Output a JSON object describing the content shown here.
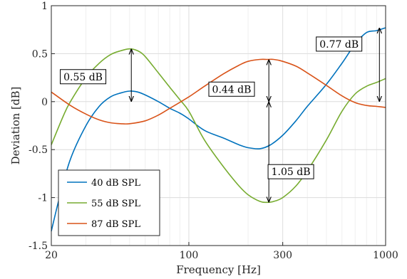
{
  "chart_data": {
    "type": "line",
    "xlabel": "Frequency [Hz]",
    "ylabel": "Deviation [dB]",
    "x_scale": "log",
    "xlim": [
      20,
      1000
    ],
    "ylim": [
      -1.5,
      1
    ],
    "x_ticks": [
      20,
      100,
      300,
      1000
    ],
    "x_tick_labels": [
      "20",
      "100",
      "300",
      "1000"
    ],
    "y_ticks": [
      -1.5,
      -1,
      -0.5,
      0,
      0.5,
      1
    ],
    "y_tick_labels": [
      "-1.5",
      "-1",
      "-0.5",
      "0",
      "0.5",
      "1"
    ],
    "grid": true,
    "legend_position": "bottom-left",
    "series": [
      {
        "name": "40 dB SPL",
        "color": "#0072BD",
        "x": [
          20,
          22,
          25,
          30,
          35,
          40,
          45,
          50,
          55,
          60,
          70,
          80,
          90,
          100,
          120,
          150,
          180,
          200,
          230,
          260,
          300,
          350,
          400,
          500,
          600,
          700,
          800,
          900,
          1000
        ],
        "y": [
          -1.35,
          -1.0,
          -0.6,
          -0.25,
          -0.05,
          0.05,
          0.09,
          0.11,
          0.1,
          0.07,
          0.0,
          -0.07,
          -0.12,
          -0.18,
          -0.3,
          -0.38,
          -0.45,
          -0.48,
          -0.49,
          -0.45,
          -0.35,
          -0.2,
          -0.05,
          0.18,
          0.4,
          0.6,
          0.72,
          0.74,
          0.77
        ]
      },
      {
        "name": "55 dB SPL",
        "color": "#77AC30",
        "x": [
          20,
          23,
          25,
          30,
          35,
          40,
          45,
          50,
          55,
          60,
          70,
          80,
          90,
          100,
          120,
          150,
          180,
          200,
          230,
          250,
          270,
          300,
          350,
          400,
          500,
          600,
          700,
          800,
          900,
          1000
        ],
        "y": [
          -0.45,
          -0.15,
          0.0,
          0.25,
          0.4,
          0.49,
          0.53,
          0.55,
          0.53,
          0.47,
          0.3,
          0.15,
          0.02,
          -0.1,
          -0.4,
          -0.68,
          -0.88,
          -0.97,
          -1.04,
          -1.05,
          -1.04,
          -1.0,
          -0.88,
          -0.72,
          -0.4,
          -0.1,
          0.08,
          0.16,
          0.2,
          0.24
        ]
      },
      {
        "name": "87 dB SPL",
        "color": "#D95319",
        "x": [
          20,
          25,
          30,
          35,
          40,
          45,
          50,
          60,
          70,
          80,
          100,
          120,
          150,
          180,
          200,
          230,
          250,
          270,
          300,
          350,
          400,
          500,
          600,
          700,
          800,
          900,
          1000
        ],
        "y": [
          0.1,
          -0.04,
          -0.13,
          -0.19,
          -0.22,
          -0.23,
          -0.23,
          -0.2,
          -0.14,
          -0.07,
          0.05,
          0.16,
          0.29,
          0.38,
          0.42,
          0.44,
          0.44,
          0.44,
          0.42,
          0.37,
          0.3,
          0.17,
          0.06,
          -0.01,
          -0.04,
          -0.05,
          -0.06
        ]
      }
    ],
    "annotations": [
      {
        "text": "0.55 dB",
        "x": 51,
        "y_from": 0.55,
        "y_to": 0.0,
        "label_x": 29,
        "label_y": 0.26
      },
      {
        "text": "0.44 dB",
        "x": 255,
        "y_from": 0.44,
        "y_to": 0.0,
        "label_x": 165,
        "label_y": 0.13
      },
      {
        "text": "1.05 dB",
        "x": 255,
        "y_from": 0.0,
        "y_to": -1.05,
        "label_x": 330,
        "label_y": -0.73
      },
      {
        "text": "0.77 dB",
        "x": 930,
        "y_from": 0.77,
        "y_to": 0.0,
        "label_x": 580,
        "label_y": 0.6
      }
    ]
  }
}
